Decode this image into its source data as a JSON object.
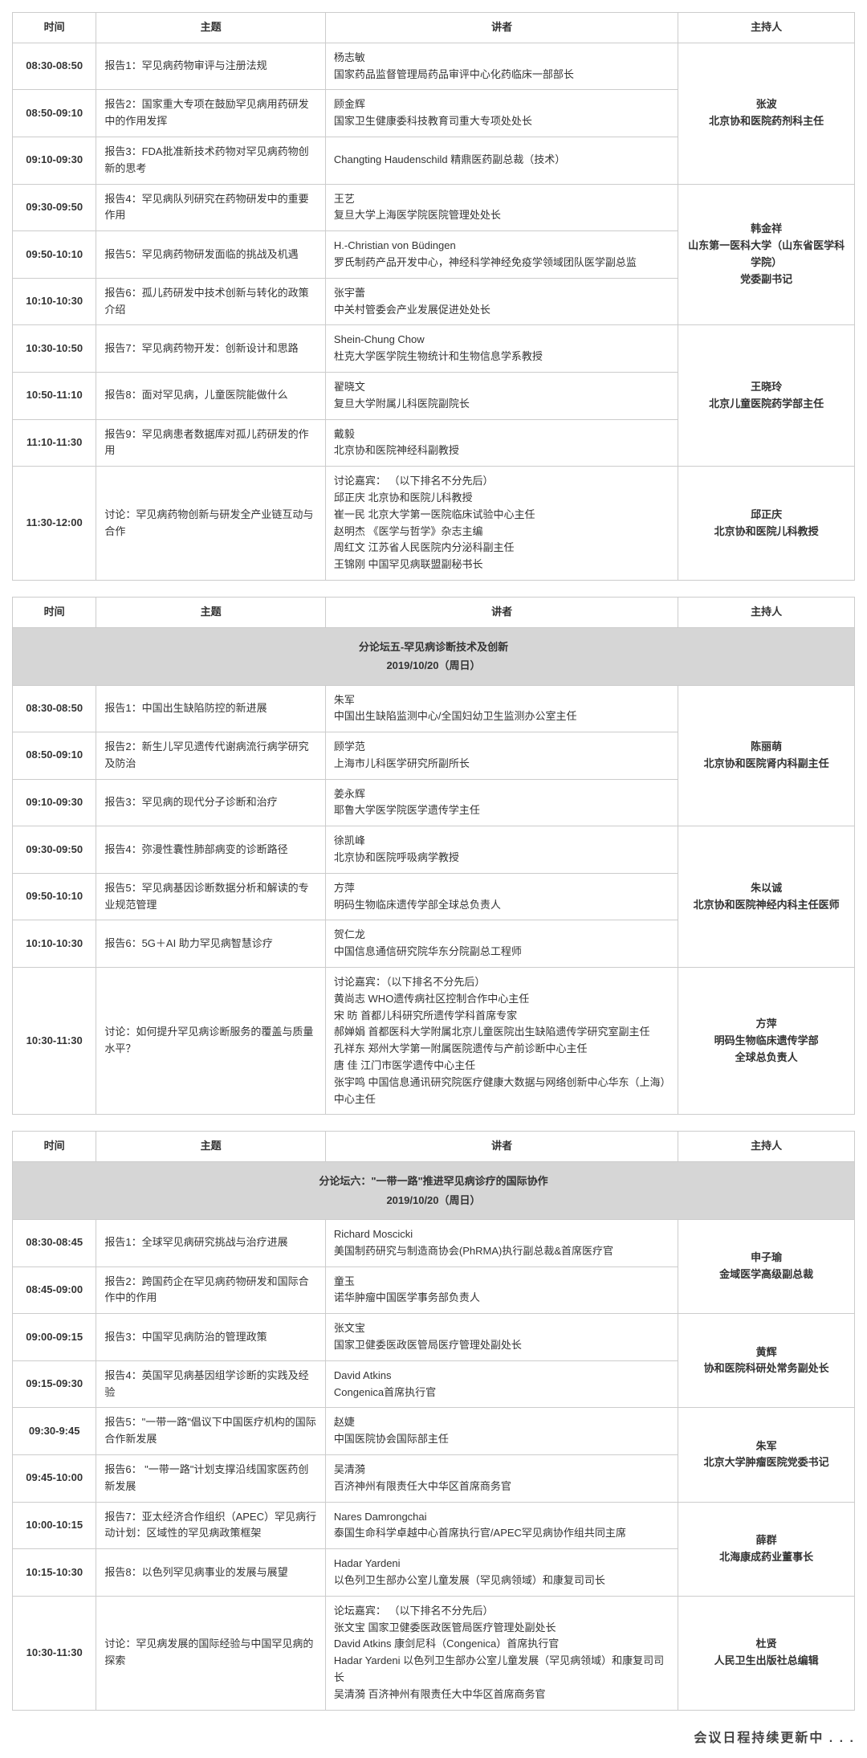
{
  "headers": {
    "time": "时间",
    "topic": "主题",
    "speaker": "讲者",
    "host": "主持人"
  },
  "footer": "会议日程持续更新中 . . .",
  "session4": {
    "groups": [
      {
        "host": "张波\n北京协和医院药剂科主任",
        "rows": [
          {
            "time": "08:30-08:50",
            "topic": "报告1：罕见病药物审评与注册法规",
            "speaker": "杨志敏\n国家药品监督管理局药品审评中心化药临床一部部长"
          },
          {
            "time": "08:50-09:10",
            "topic": "报告2：国家重大专项在鼓励罕见病用药研发中的作用发挥",
            "speaker": "顾金辉\n国家卫生健康委科技教育司重大专项处处长"
          },
          {
            "time": "09:10-09:30",
            "topic": "报告3：FDA批准新技术药物对罕见病药物创新的思考",
            "speaker": "Changting Haudenschild  精鼎医药副总裁（技术）"
          }
        ]
      },
      {
        "host": "韩金祥\n山东第一医科大学（山东省医学科学院）\n党委副书记",
        "rows": [
          {
            "time": "09:30-09:50",
            "topic": "报告4：罕见病队列研究在药物研发中的重要作用",
            "speaker": "王艺\n复旦大学上海医学院医院管理处处长"
          },
          {
            "time": "09:50-10:10",
            "topic": "报告5：罕见病药物研发面临的挑战及机遇",
            "speaker": "H.-Christian von Büdingen\n罗氏制药产品开发中心，神经科学神经免疫学领域团队医学副总监"
          },
          {
            "time": "10:10-10:30",
            "topic": "报告6：孤儿药研发中技术创新与转化的政策介绍",
            "speaker": "张宇蕾\n中关村管委会产业发展促进处处长"
          }
        ]
      },
      {
        "host": "王晓玲\n北京儿童医院药学部主任",
        "rows": [
          {
            "time": "10:30-10:50",
            "topic": "报告7：罕见病药物开发：创新设计和思路",
            "speaker": "Shein-Chung Chow\n杜克大学医学院生物统计和生物信息学系教授"
          },
          {
            "time": "10:50-11:10",
            "topic": "报告8：面对罕见病，儿童医院能做什么",
            "speaker": "翟晓文\n复旦大学附属儿科医院副院长"
          },
          {
            "time": "11:10-11:30",
            "topic": "报告9：罕见病患者数据库对孤儿药研发的作用",
            "speaker": "戴毅\n北京协和医院神经科副教授"
          }
        ]
      },
      {
        "host": "邱正庆\n北京协和医院儿科教授",
        "rows": [
          {
            "time": "11:30-12:00",
            "topic": "讨论：罕见病药物创新与研发全产业链互动与合作",
            "speaker": "讨论嘉宾： （以下排名不分先后）\n邱正庆        北京协和医院儿科教授\n崔一民        北京大学第一医院临床试验中心主任\n赵明杰      《医学与哲学》杂志主编\n周红文        江苏省人民医院内分泌科副主任\n王锦刚        中国罕见病联盟副秘书长"
          }
        ]
      }
    ]
  },
  "session5": {
    "banner": "分论坛五-罕见病诊断技术及创新\n2019/10/20（周日）",
    "groups": [
      {
        "host": "陈丽萌\n北京协和医院肾内科副主任",
        "rows": [
          {
            "time": "08:30-08:50",
            "topic": "报告1：中国出生缺陷防控的新进展",
            "speaker": "朱军\n中国出生缺陷监测中心/全国妇幼卫生监测办公室主任"
          },
          {
            "time": "08:50-09:10",
            "topic": "报告2：新生儿罕见遗传代谢病流行病学研究及防治",
            "speaker": "顾学范\n上海市儿科医学研究所副所长"
          },
          {
            "time": "09:10-09:30",
            "topic": "报告3：罕见病的现代分子诊断和治疗",
            "speaker": "姜永辉\n耶鲁大学医学院医学遗传学主任"
          }
        ]
      },
      {
        "host": "朱以诚\n北京协和医院神经内科主任医师",
        "rows": [
          {
            "time": "09:30-09:50",
            "topic": "报告4：弥漫性囊性肺部病变的诊断路径",
            "speaker": "徐凯峰\n北京协和医院呼吸病学教授"
          },
          {
            "time": "09:50-10:10",
            "topic": "报告5：罕见病基因诊断数据分析和解读的专业规范管理",
            "speaker": "方萍\n明码生物临床遗传学部全球总负责人"
          },
          {
            "time": "10:10-10:30",
            "topic": "报告6：5G＋AI 助力罕见病智慧诊疗",
            "speaker": "贺仁龙\n中国信息通信研究院华东分院副总工程师"
          }
        ]
      },
      {
        "host": "方萍\n明码生物临床遗传学部\n全球总负责人",
        "rows": [
          {
            "time": "10:30-11:30",
            "topic": "讨论：如何提升罕见病诊断服务的覆盖与质量水平？",
            "speaker": "讨论嘉宾：（以下排名不分先后）\n黄尚志        WHO遗传病社区控制合作中心主任\n宋  昉          首都儿科研究所遗传学科首席专家\n郝婵娟        首都医科大学附属北京儿童医院出生缺陷遗传学研究室副主任\n孔祥东        郑州大学第一附属医院遗传与产前诊断中心主任\n唐  佳          江门市医学遗传中心主任\n张宇鸣        中国信息通讯研究院医疗健康大数据与网络创新中心华东（上海）中心主任"
          }
        ]
      }
    ]
  },
  "session6": {
    "banner": "分论坛六：\"一带一路\"推进罕见病诊疗的国际协作\n2019/10/20（周日）",
    "groups": [
      {
        "host": "申子瑜\n金域医学高级副总裁",
        "rows": [
          {
            "time": "08:30-08:45",
            "topic": "报告1：全球罕见病研究挑战与治疗进展",
            "speaker": "Richard Moscicki\n美国制药研究与制造商协会(PhRMA)执行副总裁&首席医疗官"
          },
          {
            "time": "08:45-09:00",
            "topic": "报告2：跨国药企在罕见病药物研发和国际合作中的作用",
            "speaker": "童玉\n诺华肿瘤中国医学事务部负责人"
          }
        ]
      },
      {
        "host": "黄辉\n协和医院科研处常务副处长",
        "rows": [
          {
            "time": "09:00-09:15",
            "topic": "报告3：中国罕见病防治的管理政策",
            "speaker": "张文宝\n国家卫健委医政医管局医疗管理处副处长"
          },
          {
            "time": "09:15-09:30",
            "topic": "报告4：英国罕见病基因组学诊断的实践及经验",
            "speaker": "David Atkins\nCongenica首席执行官"
          }
        ]
      },
      {
        "host": "朱军\n北京大学肿瘤医院党委书记",
        "rows": [
          {
            "time": "09:30-9:45",
            "topic": "报告5：\"一带一路\"倡议下中国医疗机构的国际合作新发展",
            "speaker": "赵婕\n中国医院协会国际部主任"
          },
          {
            "time": "09:45-10:00",
            "topic": "报告6： \"一带一路\"计划支撑沿线国家医药创新发展",
            "speaker": "吴清漪\n百济神州有限责任大中华区首席商务官"
          }
        ]
      },
      {
        "host": "薛群\n北海康成药业董事长",
        "rows": [
          {
            "time": "10:00-10:15",
            "topic": "报告7：亚太经济合作组织（APEC）罕见病行动计划：区域性的罕见病政策框架",
            "speaker": "Nares Damrongchai\n泰国生命科学卓越中心首席执行官/APEC罕见病协作组共同主席"
          },
          {
            "time": "10:15-10:30",
            "topic": "报告8：以色列罕见病事业的发展与展望",
            "speaker": "Hadar Yardeni\n以色列卫生部办公室儿童发展（罕见病领域）和康复司司长"
          }
        ]
      },
      {
        "host": "杜贤\n人民卫生出版社总编辑",
        "rows": [
          {
            "time": "10:30-11:30",
            "topic": "讨论：罕见病发展的国际经验与中国罕见病的探索",
            "speaker": "论坛嘉宾： （以下排名不分先后）\n张文宝           国家卫健委医政医管局医疗管理处副处长\nDavid Atkins    康剑尼科（Congenica）首席执行官\nHadar Yardeni    以色列卫生部办公室儿童发展（罕见病领域）和康复司司长\n吴清漪           百济神州有限责任大中华区首席商务官"
          }
        ]
      }
    ]
  }
}
